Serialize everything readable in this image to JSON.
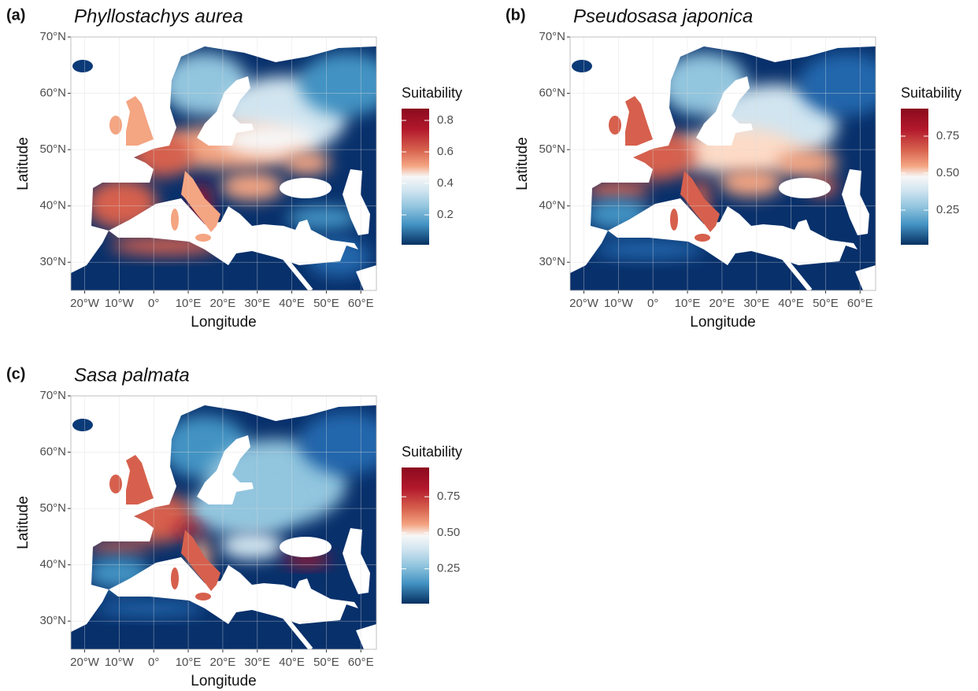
{
  "panels": [
    {
      "label": "(a)",
      "title": "Phyllostachys aurea",
      "x_axis_label": "Longitude",
      "y_axis_label": "Latitude",
      "xlim": [
        -24,
        64.5
      ],
      "ylim": [
        25,
        70
      ],
      "xticks": [
        {
          "value": -20,
          "label": "20°W"
        },
        {
          "value": -10,
          "label": "10°W"
        },
        {
          "value": 0,
          "label": "0°"
        },
        {
          "value": 10,
          "label": "10°E"
        },
        {
          "value": 20,
          "label": "20°E"
        },
        {
          "value": 30,
          "label": "30°E"
        },
        {
          "value": 40,
          "label": "40°E"
        },
        {
          "value": 50,
          "label": "50°E"
        },
        {
          "value": 60,
          "label": "60°E"
        }
      ],
      "yticks": [
        {
          "value": 30,
          "label": "30°N"
        },
        {
          "value": 40,
          "label": "40°N"
        },
        {
          "value": 50,
          "label": "50°N"
        },
        {
          "value": 60,
          "label": "60°N"
        },
        {
          "value": 70,
          "label": "70°N"
        }
      ],
      "legend": {
        "title": "Suitability",
        "range": [
          0.01,
          0.875
        ],
        "ticks": [
          0.2,
          0.4,
          0.6,
          0.8
        ]
      }
    },
    {
      "label": "(b)",
      "title": "Pseudosasa japonica",
      "x_axis_label": "Longitude",
      "y_axis_label": "Latitude",
      "xlim": [
        -24,
        64.5
      ],
      "ylim": [
        25,
        70
      ],
      "xticks": [
        {
          "value": -20,
          "label": "20°W"
        },
        {
          "value": -10,
          "label": "10°W"
        },
        {
          "value": 0,
          "label": "0°"
        },
        {
          "value": 10,
          "label": "10°E"
        },
        {
          "value": 20,
          "label": "20°E"
        },
        {
          "value": 30,
          "label": "30°E"
        },
        {
          "value": 40,
          "label": "40°E"
        },
        {
          "value": 50,
          "label": "50°E"
        },
        {
          "value": 60,
          "label": "60°E"
        }
      ],
      "yticks": [
        {
          "value": 30,
          "label": "30°N"
        },
        {
          "value": 40,
          "label": "40°N"
        },
        {
          "value": 50,
          "label": "50°N"
        },
        {
          "value": 60,
          "label": "60°N"
        },
        {
          "value": 70,
          "label": "70°N"
        }
      ],
      "legend": {
        "title": "Suitability",
        "range": [
          0.016,
          0.936
        ],
        "ticks": [
          0.25,
          {
            "value": 0.5,
            "label": "0.50"
          },
          0.75
        ]
      }
    },
    {
      "label": "(c)",
      "title": "Sasa palmata",
      "x_axis_label": "Longitude",
      "y_axis_label": "Latitude",
      "xlim": [
        -24,
        64.5
      ],
      "ylim": [
        25,
        70
      ],
      "xticks": [
        {
          "value": -20,
          "label": "20°W"
        },
        {
          "value": -10,
          "label": "10°W"
        },
        {
          "value": 0,
          "label": "0°"
        },
        {
          "value": 10,
          "label": "10°E"
        },
        {
          "value": 20,
          "label": "20°E"
        },
        {
          "value": 30,
          "label": "30°E"
        },
        {
          "value": 40,
          "label": "40°E"
        },
        {
          "value": 50,
          "label": "50°E"
        },
        {
          "value": 60,
          "label": "60°E"
        }
      ],
      "yticks": [
        {
          "value": 30,
          "label": "30°N"
        },
        {
          "value": 40,
          "label": "40°N"
        },
        {
          "value": 50,
          "label": "50°N"
        },
        {
          "value": 60,
          "label": "60°N"
        },
        {
          "value": 70,
          "label": "70°N"
        }
      ],
      "legend": {
        "title": "Suitability",
        "range": [
          0.008,
          0.953
        ],
        "ticks": [
          0.25,
          {
            "value": 0.5,
            "label": "0.50"
          },
          0.75
        ]
      }
    }
  ]
}
